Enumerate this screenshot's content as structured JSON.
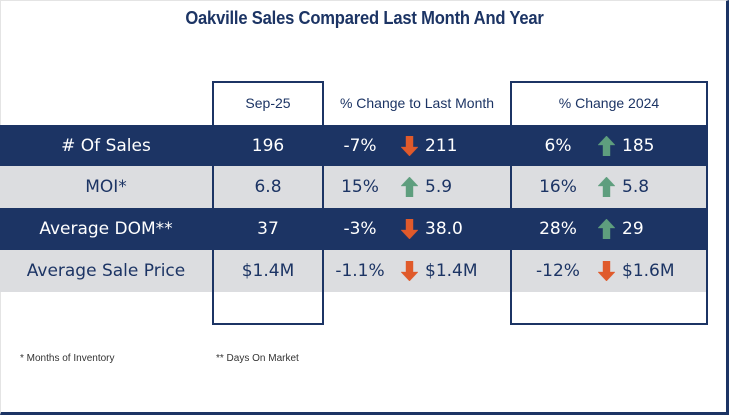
{
  "title": "Oakville Sales Compared Last Month And Year",
  "headers": {
    "current": "Sep-25",
    "month_change": "% Change to Last Month",
    "year_change": "% Change 2024"
  },
  "colors": {
    "navy": "#1c3464",
    "light_row": "#dcdde0",
    "up_arrow": "#5e9e7e",
    "down_arrow": "#e05a2b"
  },
  "rows": [
    {
      "label": "# Of Sales",
      "current": "196",
      "month_pct": "-7%",
      "month_dir": "down",
      "month_prev": "211",
      "year_pct": "6%",
      "year_dir": "up",
      "year_prev": "185"
    },
    {
      "label": "MOI*",
      "current": "6.8",
      "month_pct": "15%",
      "month_dir": "up",
      "month_prev": "5.9",
      "year_pct": "16%",
      "year_dir": "up",
      "year_prev": "5.8"
    },
    {
      "label": "Average DOM**",
      "current": "37",
      "month_pct": "-3%",
      "month_dir": "down",
      "month_prev": "38.0",
      "year_pct": "28%",
      "year_dir": "up",
      "year_prev": "29"
    },
    {
      "label": "Average Sale Price",
      "current": "$1.4M",
      "month_pct": "-1.1%",
      "month_dir": "down",
      "month_prev": "$1.4M",
      "year_pct": "-12%",
      "year_dir": "down",
      "year_prev": "$1.6M"
    }
  ],
  "footnotes": {
    "moi": "* Months of Inventory",
    "dom": "** Days On Market"
  }
}
